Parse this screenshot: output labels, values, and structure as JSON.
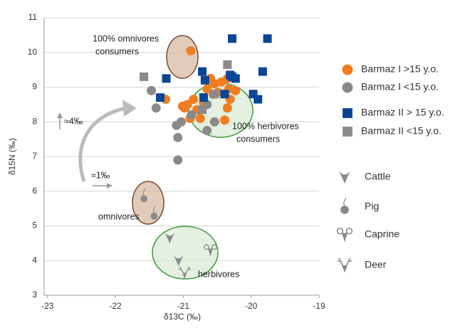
{
  "chart_data": {
    "type": "scatter",
    "x_label": "δ13C (‰)",
    "y_label": "δ15N (‰)",
    "xlim": [
      -23.05,
      -19
    ],
    "ylim": [
      3,
      11
    ],
    "xticks": [
      -23,
      -22,
      -21,
      -20,
      -19
    ],
    "yticks": [
      3,
      4,
      5,
      6,
      7,
      8,
      9,
      10,
      11
    ],
    "grid": true,
    "annotations": [
      "100% omnivores",
      "consumers",
      "100% herbivores",
      "consumers",
      "omnivores",
      "herbivores",
      "≈4‰",
      "≈1‰"
    ],
    "series": [
      {
        "name": "Barmaz I >15 y.o.",
        "color": "#f07d22",
        "marker": "circle",
        "x": [
          -20.89,
          -21.26,
          -20.98,
          -20.94,
          -20.85,
          -20.8,
          -20.9,
          -20.7,
          -20.65,
          -20.6,
          -20.54,
          -20.49,
          -20.56,
          -20.44,
          -20.35,
          -20.33,
          -20.31,
          -20.23,
          -20.39,
          -20.35,
          -20.75,
          -21.01
        ],
        "y": [
          10.05,
          8.65,
          8.4,
          8.5,
          8.65,
          8.35,
          8.1,
          8.55,
          8.95,
          9.25,
          9.1,
          8.85,
          8.8,
          9.15,
          9.25,
          8.95,
          8.65,
          8.9,
          8.05,
          8.4,
          8.1,
          8.45
        ]
      },
      {
        "name": "Barmaz I <15 y.o.",
        "color": "#8a8a8a",
        "marker": "circle",
        "x": [
          -21.47,
          -21.4,
          -21.1,
          -21.08,
          -21.08,
          -21.03,
          -20.88,
          -20.65,
          -20.54,
          -20.65
        ],
        "y": [
          8.9,
          8.4,
          7.9,
          7.55,
          6.9,
          8.0,
          8.2,
          7.75,
          8.0,
          8.5
        ]
      },
      {
        "name": "Barmaz II > 15 y.o.",
        "color": "#0b4596",
        "marker": "square",
        "x": [
          -20.28,
          -19.76,
          -21.25,
          -21.34,
          -20.72,
          -20.68,
          -20.7,
          -20.39,
          -20.28,
          -20.23,
          -19.97,
          -19.9,
          -19.83,
          -20.31
        ],
        "y": [
          10.4,
          10.4,
          9.25,
          8.7,
          9.45,
          9.2,
          8.7,
          8.8,
          9.3,
          9.25,
          8.8,
          8.65,
          9.45,
          9.35
        ]
      },
      {
        "name": "Barmaz II <15 y.o.",
        "color": "#8a8a8a",
        "marker": "square",
        "x": [
          -21.58,
          -20.35,
          -20.72,
          -20.54
        ],
        "y": [
          9.3,
          9.65,
          8.35,
          8.8
        ]
      },
      {
        "name": "Cattle",
        "color": "#8a8a8a",
        "marker": "cattle",
        "x": [
          -21.2,
          -21.07
        ],
        "y": [
          4.65,
          4.0
        ]
      },
      {
        "name": "Pig",
        "color": "#8a8a8a",
        "marker": "pig",
        "x": [
          -21.58,
          -21.43
        ],
        "y": [
          5.85,
          5.35
        ]
      },
      {
        "name": "Caprine",
        "color": "#8a8a8a",
        "marker": "caprine",
        "x": [
          -20.6
        ],
        "y": [
          4.3
        ]
      },
      {
        "name": "Deer",
        "color": "#8a8a8a",
        "marker": "deer",
        "x": [
          -20.98
        ],
        "y": [
          3.65
        ]
      }
    ]
  }
}
